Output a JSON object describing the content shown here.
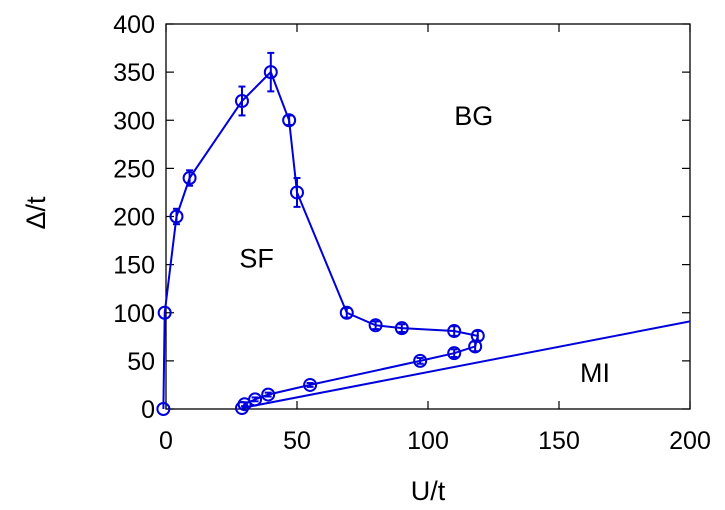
{
  "chart_data": {
    "type": "line",
    "title": "",
    "xlabel": "U/t",
    "ylabel": "Δ/t",
    "xlim": [
      0,
      200
    ],
    "ylim": [
      0,
      400
    ],
    "xticks": [
      0,
      50,
      100,
      150,
      200
    ],
    "yticks": [
      0,
      50,
      100,
      150,
      200,
      250,
      300,
      350,
      400
    ],
    "grid": false,
    "legend": "none",
    "color": "#0000dd",
    "series": [
      {
        "marker": "open-circle",
        "points": [
          {
            "x": -1,
            "y": 0,
            "err": 0
          },
          {
            "x": -0.5,
            "y": 100,
            "err": 0
          },
          {
            "x": 4,
            "y": 200,
            "err": 8
          },
          {
            "x": 9,
            "y": 240,
            "err": 8
          },
          {
            "x": 29,
            "y": 320,
            "err": 15
          },
          {
            "x": 40,
            "y": 350,
            "err": 20
          },
          {
            "x": 47,
            "y": 300,
            "err": 5
          },
          {
            "x": 50,
            "y": 225,
            "err": 15
          },
          {
            "x": 69,
            "y": 100,
            "err": 5
          },
          {
            "x": 80,
            "y": 87,
            "err": 4
          },
          {
            "x": 90,
            "y": 84,
            "err": 4
          },
          {
            "x": 110,
            "y": 81,
            "err": 5
          },
          {
            "x": 119,
            "y": 76,
            "err": 5
          },
          {
            "x": 118,
            "y": 65,
            "err": 5
          },
          {
            "x": 110,
            "y": 58,
            "err": 4
          },
          {
            "x": 97,
            "y": 50,
            "err": 3
          },
          {
            "x": 55,
            "y": 25,
            "err": 2
          },
          {
            "x": 39,
            "y": 15,
            "err": 2
          },
          {
            "x": 34,
            "y": 10,
            "err": 2
          },
          {
            "x": 30,
            "y": 5,
            "err": 2
          },
          {
            "x": 29,
            "y": 1,
            "err": 0
          }
        ]
      },
      {
        "marker": "none",
        "points": [
          {
            "x": 29,
            "y": 1
          },
          {
            "x": 200,
            "y": 91
          }
        ]
      }
    ],
    "annotations": [
      {
        "text": "BG",
        "x": 110,
        "y": 295
      },
      {
        "text": "SF",
        "x": 28,
        "y": 147
      },
      {
        "text": "MI",
        "x": 158,
        "y": 28
      }
    ]
  }
}
